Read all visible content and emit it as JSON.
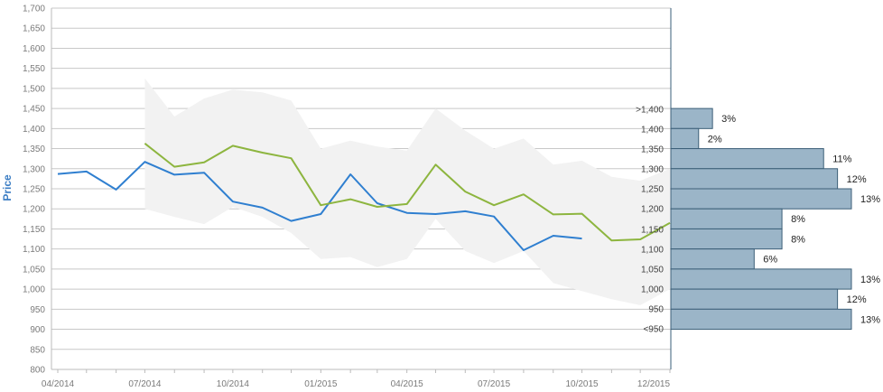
{
  "chart_data": {
    "type": "line",
    "ylabel": "Price",
    "ylim": [
      800,
      1700
    ],
    "y_ticks": [
      800,
      850,
      900,
      950,
      1000,
      1050,
      1100,
      1150,
      1200,
      1250,
      1300,
      1350,
      1400,
      1450,
      1500,
      1550,
      1600,
      1650,
      1700
    ],
    "y_tick_labels": [
      "800",
      "850",
      "900",
      "950",
      "1,000",
      "1,050",
      "1,100",
      "1,150",
      "1,200",
      "1,250",
      "1,300",
      "1,350",
      "1,400",
      "1,450",
      "1,500",
      "1,550",
      "1,600",
      "1,650",
      "1,700"
    ],
    "x_tick_labels": [
      "04/2014",
      "07/2014",
      "10/2014",
      "01/2015",
      "04/2015",
      "07/2015",
      "10/2015",
      "12/2015"
    ],
    "grid": true,
    "series": [
      {
        "color": "#2f7fd0",
        "x": [
          "2014-04-01",
          "2014-05-01",
          "2014-06-01",
          "2014-07-01",
          "2014-08-01",
          "2014-09-01",
          "2014-10-01",
          "2014-11-01",
          "2014-12-01",
          "2015-01-01",
          "2015-02-01",
          "2015-03-01",
          "2015-04-01",
          "2015-05-01",
          "2015-06-01",
          "2015-07-01",
          "2015-08-01",
          "2015-09-01",
          "2015-10-01"
        ],
        "values": [
          1287,
          1293,
          1248,
          1317,
          1285,
          1290,
          1218,
          1203,
          1170,
          1187,
          1286,
          1214,
          1190,
          1187,
          1194,
          1181,
          1097,
          1133,
          1126
        ]
      },
      {
        "color": "#8db53f",
        "x": [
          "2014-07-01",
          "2014-08-01",
          "2014-09-01",
          "2014-10-01",
          "2014-11-01",
          "2014-12-01",
          "2015-01-01",
          "2015-02-01",
          "2015-03-01",
          "2015-04-01",
          "2015-05-01",
          "2015-06-01",
          "2015-07-01",
          "2015-08-01",
          "2015-09-01",
          "2015-10-01",
          "2015-11-01",
          "2015-12-01",
          "2016-01-01"
        ],
        "values": [
          1363,
          1305,
          1316,
          1357,
          1340,
          1326,
          1209,
          1224,
          1205,
          1212,
          1310,
          1243,
          1209,
          1236,
          1186,
          1188,
          1121,
          1124,
          1165
        ]
      }
    ],
    "band": {
      "color": "#f2f2f2",
      "x": [
        "2014-07-01",
        "2014-08-01",
        "2014-09-01",
        "2014-10-01",
        "2014-11-01",
        "2014-12-01",
        "2015-01-01",
        "2015-02-01",
        "2015-03-01",
        "2015-04-01",
        "2015-05-01",
        "2015-06-01",
        "2015-07-01",
        "2015-08-01",
        "2015-09-01",
        "2015-10-01",
        "2015-11-01",
        "2015-12-01",
        "2016-01-01"
      ],
      "upper": [
        1525,
        1430,
        1475,
        1497,
        1490,
        1470,
        1350,
        1370,
        1355,
        1345,
        1450,
        1395,
        1350,
        1375,
        1310,
        1320,
        1280,
        1270,
        1300
      ],
      "lower": [
        1200,
        1180,
        1162,
        1205,
        1180,
        1140,
        1075,
        1080,
        1055,
        1075,
        1175,
        1095,
        1065,
        1095,
        1015,
        995,
        975,
        960,
        1000
      ]
    },
    "histogram": {
      "color": "#9bb5c8",
      "bins": [
        ">1,400",
        "1,400",
        "1,350",
        "1,300",
        "1,250",
        "1,200",
        "1,150",
        "1,100",
        "1,050",
        "1,000",
        "950",
        "<950"
      ],
      "counts": [
        3,
        2,
        11,
        12,
        13,
        8,
        8,
        6,
        13,
        12,
        13
      ],
      "count_labels": [
        "3%",
        "2%",
        "11%",
        "12%",
        "13%",
        "8%",
        "8%",
        "6%",
        "13%",
        "12%",
        "13%"
      ]
    }
  }
}
